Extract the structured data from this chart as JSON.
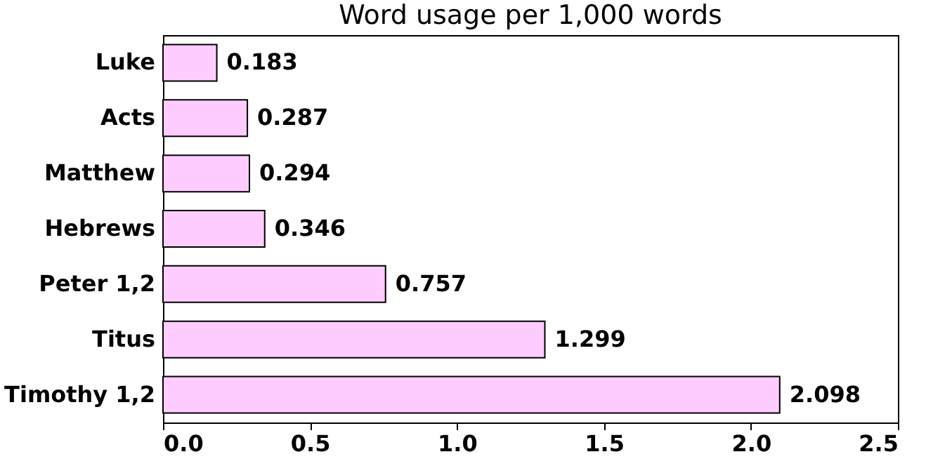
{
  "chart_data": {
    "type": "bar",
    "orientation": "horizontal",
    "title": "Word usage per 1,000 words",
    "categories": [
      "Luke",
      "Acts",
      "Matthew",
      "Hebrews",
      "Peter 1,2",
      "Titus",
      "Timothy 1,2"
    ],
    "values": [
      0.183,
      0.287,
      0.294,
      0.346,
      0.757,
      1.299,
      2.098
    ],
    "color": "#ffccff",
    "xlim": [
      0,
      2.5
    ],
    "xticks": [
      {
        "value": 0,
        "label": "0.0"
      },
      0.5,
      {
        "value": 1,
        "label": "1.0"
      },
      1.5,
      {
        "value": 2,
        "label": "2.0"
      },
      2.5
    ],
    "data_labels": true,
    "grid": false
  }
}
